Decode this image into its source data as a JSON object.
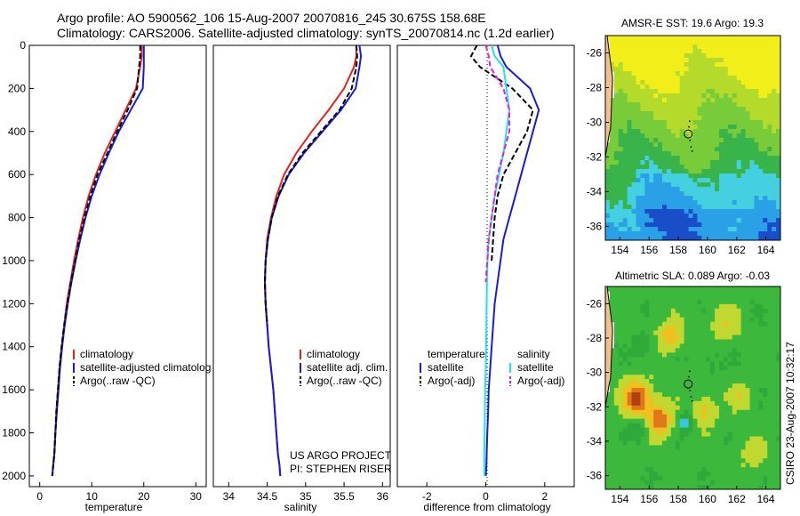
{
  "header": {
    "line1": "Argo profile: AO 5900562_106 15-Aug-2007 20070816_245 30.675S 158.68E",
    "line2": "Climatology: CARS2006. Satellite-adjusted climatology: synTS_20070814.nc (1.2d earlier)"
  },
  "footer": {
    "project": "US ARGO PROJECT",
    "pi": "PI: STEPHEN RISER",
    "credit": "CSIRO 23-Aug-2007 10:32:17"
  },
  "colors": {
    "climatology": "#e8201c",
    "satellite": "#1a1adc",
    "argo": "#000000",
    "cyan": "#22e0f0",
    "magenta": "#e020e0",
    "land": "#f0c090"
  },
  "chart_data": [
    {
      "type": "line",
      "id": "temperature-profile",
      "xlabel": "temperature",
      "ylabel": "",
      "xlim": [
        -2,
        32
      ],
      "ylim": [
        2050,
        0
      ],
      "xticks": [
        0,
        10,
        20,
        30
      ],
      "yticks": [
        0,
        200,
        400,
        600,
        800,
        1000,
        1200,
        1400,
        1600,
        1800,
        2000
      ],
      "legend": [
        "climatology",
        "satellite-adjusted climatolog",
        "Argo(..raw -QC)"
      ],
      "series": [
        {
          "name": "climatology",
          "color": "#e8201c",
          "dash": "none",
          "x": [
            19.6,
            19.6,
            19.3,
            18.5,
            16.5,
            14.5,
            12.5,
            10.8,
            9.4,
            8.3,
            7.4,
            6.6,
            5.9,
            5.2,
            4.7,
            4.2,
            3.8,
            3.5,
            3.2,
            3.0,
            2.8,
            2.6,
            2.4
          ],
          "y": [
            0,
            50,
            100,
            200,
            300,
            400,
            500,
            600,
            700,
            800,
            900,
            1000,
            1100,
            1200,
            1300,
            1400,
            1500,
            1600,
            1700,
            1800,
            1900,
            1950,
            2000
          ]
        },
        {
          "name": "satellite-adjusted climatolog",
          "color": "#1a1adc",
          "dash": "none",
          "x": [
            20.0,
            20.0,
            20.0,
            19.8,
            17.5,
            15.2,
            13.3,
            11.5,
            10.0,
            8.8,
            7.8,
            6.9,
            6.1,
            5.4,
            4.8,
            4.3,
            3.9,
            3.6,
            3.3,
            3.0,
            2.8,
            2.6,
            2.4
          ],
          "y": [
            0,
            50,
            100,
            200,
            300,
            400,
            500,
            600,
            700,
            800,
            900,
            1000,
            1100,
            1200,
            1300,
            1400,
            1500,
            1600,
            1700,
            1800,
            1900,
            1950,
            2000
          ]
        },
        {
          "name": "Argo(..raw -QC)",
          "color": "#000000",
          "dash": "6,3",
          "x": [
            19.3,
            19.3,
            19.1,
            18.7,
            16.9,
            14.9,
            13.0,
            11.1,
            9.7,
            8.6,
            7.6,
            6.8,
            6.0,
            5.3,
            4.7,
            4.2,
            3.8,
            3.5,
            3.2,
            3.0,
            2.8,
            2.6,
            2.4
          ],
          "y": [
            0,
            50,
            100,
            200,
            300,
            400,
            500,
            600,
            700,
            800,
            900,
            1000,
            1100,
            1200,
            1300,
            1400,
            1500,
            1600,
            1700,
            1800,
            1900,
            1950,
            2000
          ]
        }
      ]
    },
    {
      "type": "line",
      "id": "salinity-profile",
      "xlabel": "salinity",
      "ylabel": "",
      "xlim": [
        33.8,
        36.1
      ],
      "ylim": [
        2050,
        0
      ],
      "xticks": [
        34,
        34.5,
        35,
        35.5,
        36
      ],
      "legend": [
        "climatology",
        "satellite adj. clim.",
        "Argo(..raw -QC)"
      ],
      "series": [
        {
          "name": "climatology",
          "color": "#e8201c",
          "dash": "none",
          "x": [
            35.66,
            35.66,
            35.63,
            35.5,
            35.3,
            35.08,
            34.88,
            34.72,
            34.62,
            34.55,
            34.5,
            34.48,
            34.47,
            34.48,
            34.5,
            34.52,
            34.55,
            34.58,
            34.6,
            34.62,
            34.64,
            34.66,
            34.67
          ],
          "y": [
            0,
            50,
            100,
            200,
            300,
            400,
            500,
            600,
            700,
            800,
            900,
            1000,
            1100,
            1200,
            1300,
            1400,
            1500,
            1600,
            1700,
            1800,
            1900,
            1950,
            2000
          ]
        },
        {
          "name": "satellite adj. clim.",
          "color": "#1a1adc",
          "dash": "none",
          "x": [
            35.7,
            35.72,
            35.7,
            35.65,
            35.46,
            35.22,
            34.98,
            34.78,
            34.65,
            34.56,
            34.51,
            34.48,
            34.47,
            34.48,
            34.5,
            34.52,
            34.55,
            34.58,
            34.6,
            34.62,
            34.64,
            34.66,
            34.67
          ],
          "y": [
            0,
            50,
            100,
            200,
            300,
            400,
            500,
            600,
            700,
            800,
            900,
            1000,
            1100,
            1200,
            1300,
            1400,
            1500,
            1600,
            1700,
            1800,
            1900,
            1950,
            2000
          ]
        },
        {
          "name": "Argo(..raw -QC)",
          "color": "#000000",
          "dash": "6,3",
          "x": [
            35.66,
            35.67,
            35.66,
            35.6,
            35.44,
            35.2,
            34.96,
            34.77,
            34.64,
            34.56,
            34.51,
            34.48,
            34.47,
            34.48,
            34.5
          ],
          "y": [
            0,
            50,
            100,
            200,
            300,
            400,
            500,
            600,
            700,
            800,
            900,
            1000,
            1100,
            1200,
            1300
          ]
        }
      ]
    },
    {
      "type": "line",
      "id": "difference-profile",
      "xlabel": "difference from climatology",
      "ylabel": "",
      "xlim": [
        -3,
        3
      ],
      "ylim": [
        2050,
        0
      ],
      "xticks": [
        -2,
        0,
        2
      ],
      "legend": [
        "temperature",
        "satellite",
        "Argo(-adj)",
        "salinity",
        "satellite",
        "Argo(-adj)"
      ],
      "series": [
        {
          "name": "temperature satellite",
          "color": "#1a1adc",
          "dash": "none",
          "x": [
            0.4,
            0.5,
            0.7,
            1.5,
            1.8,
            1.6,
            1.4,
            1.2,
            1.0,
            0.8,
            0.6,
            0.5,
            0.4,
            0.3,
            0.25,
            0.2,
            0.15,
            0.1,
            0.08,
            0.05,
            0.03,
            0.02,
            0.0
          ],
          "y": [
            0,
            50,
            100,
            200,
            300,
            400,
            500,
            600,
            700,
            800,
            900,
            1000,
            1100,
            1200,
            1300,
            1400,
            1500,
            1600,
            1700,
            1800,
            1900,
            1950,
            2000
          ]
        },
        {
          "name": "temperature Argo(-adj)",
          "color": "#000000",
          "dash": "6,3",
          "x": [
            -0.3,
            -0.5,
            -0.2,
            0.9,
            1.6,
            1.4,
            1.0,
            0.6,
            0.4,
            0.3,
            0.25,
            0.2
          ],
          "y": [
            0,
            50,
            100,
            200,
            300,
            400,
            500,
            600,
            700,
            800,
            900,
            1000
          ]
        },
        {
          "name": "salinity satellite",
          "color": "#22e0f0",
          "dash": "none",
          "x": [
            0.2,
            0.3,
            0.6,
            0.7,
            0.8,
            0.7,
            0.6,
            0.45,
            0.3,
            0.2,
            0.1,
            0.06,
            0.04,
            0.03,
            0.02,
            0.01,
            0.0,
            -0.02,
            -0.03,
            -0.04,
            -0.05,
            -0.05,
            -0.05
          ],
          "y": [
            0,
            50,
            100,
            200,
            300,
            400,
            500,
            600,
            700,
            800,
            900,
            1000,
            1100,
            1200,
            1300,
            1400,
            1500,
            1600,
            1700,
            1800,
            1900,
            1950,
            2000
          ]
        },
        {
          "name": "salinity Argo(-adj)",
          "color": "#e020e0",
          "dash": "6,3",
          "x": [
            0.0,
            0.1,
            0.15,
            0.6,
            0.8,
            0.8,
            0.6,
            0.4,
            0.3,
            0.2,
            0.1,
            0.05,
            0.0
          ],
          "y": [
            0,
            50,
            100,
            200,
            300,
            400,
            500,
            600,
            700,
            800,
            900,
            1000,
            1100
          ]
        }
      ]
    },
    {
      "type": "heatmap",
      "id": "sst-map",
      "title": "AMSR-E SST: 19.6 Argo: 19.3",
      "xlim": [
        153,
        165
      ],
      "ylim": [
        -36.8,
        -25
      ],
      "xticks": [
        154,
        156,
        158,
        160,
        162,
        164
      ],
      "yticks": [
        -26,
        -28,
        -30,
        -32,
        -34,
        -36
      ],
      "argo_position": {
        "lon": 158.68,
        "lat": -30.675
      }
    },
    {
      "type": "heatmap",
      "id": "sla-map",
      "title": "Altimetric SLA: 0.089 Argo: -0.03",
      "xlim": [
        153,
        165
      ],
      "ylim": [
        -36.8,
        -25
      ],
      "xticks": [
        154,
        156,
        158,
        160,
        162,
        164
      ],
      "yticks": [
        -26,
        -28,
        -30,
        -32,
        -34,
        -36
      ],
      "argo_position": {
        "lon": 158.68,
        "lat": -30.675
      }
    }
  ]
}
